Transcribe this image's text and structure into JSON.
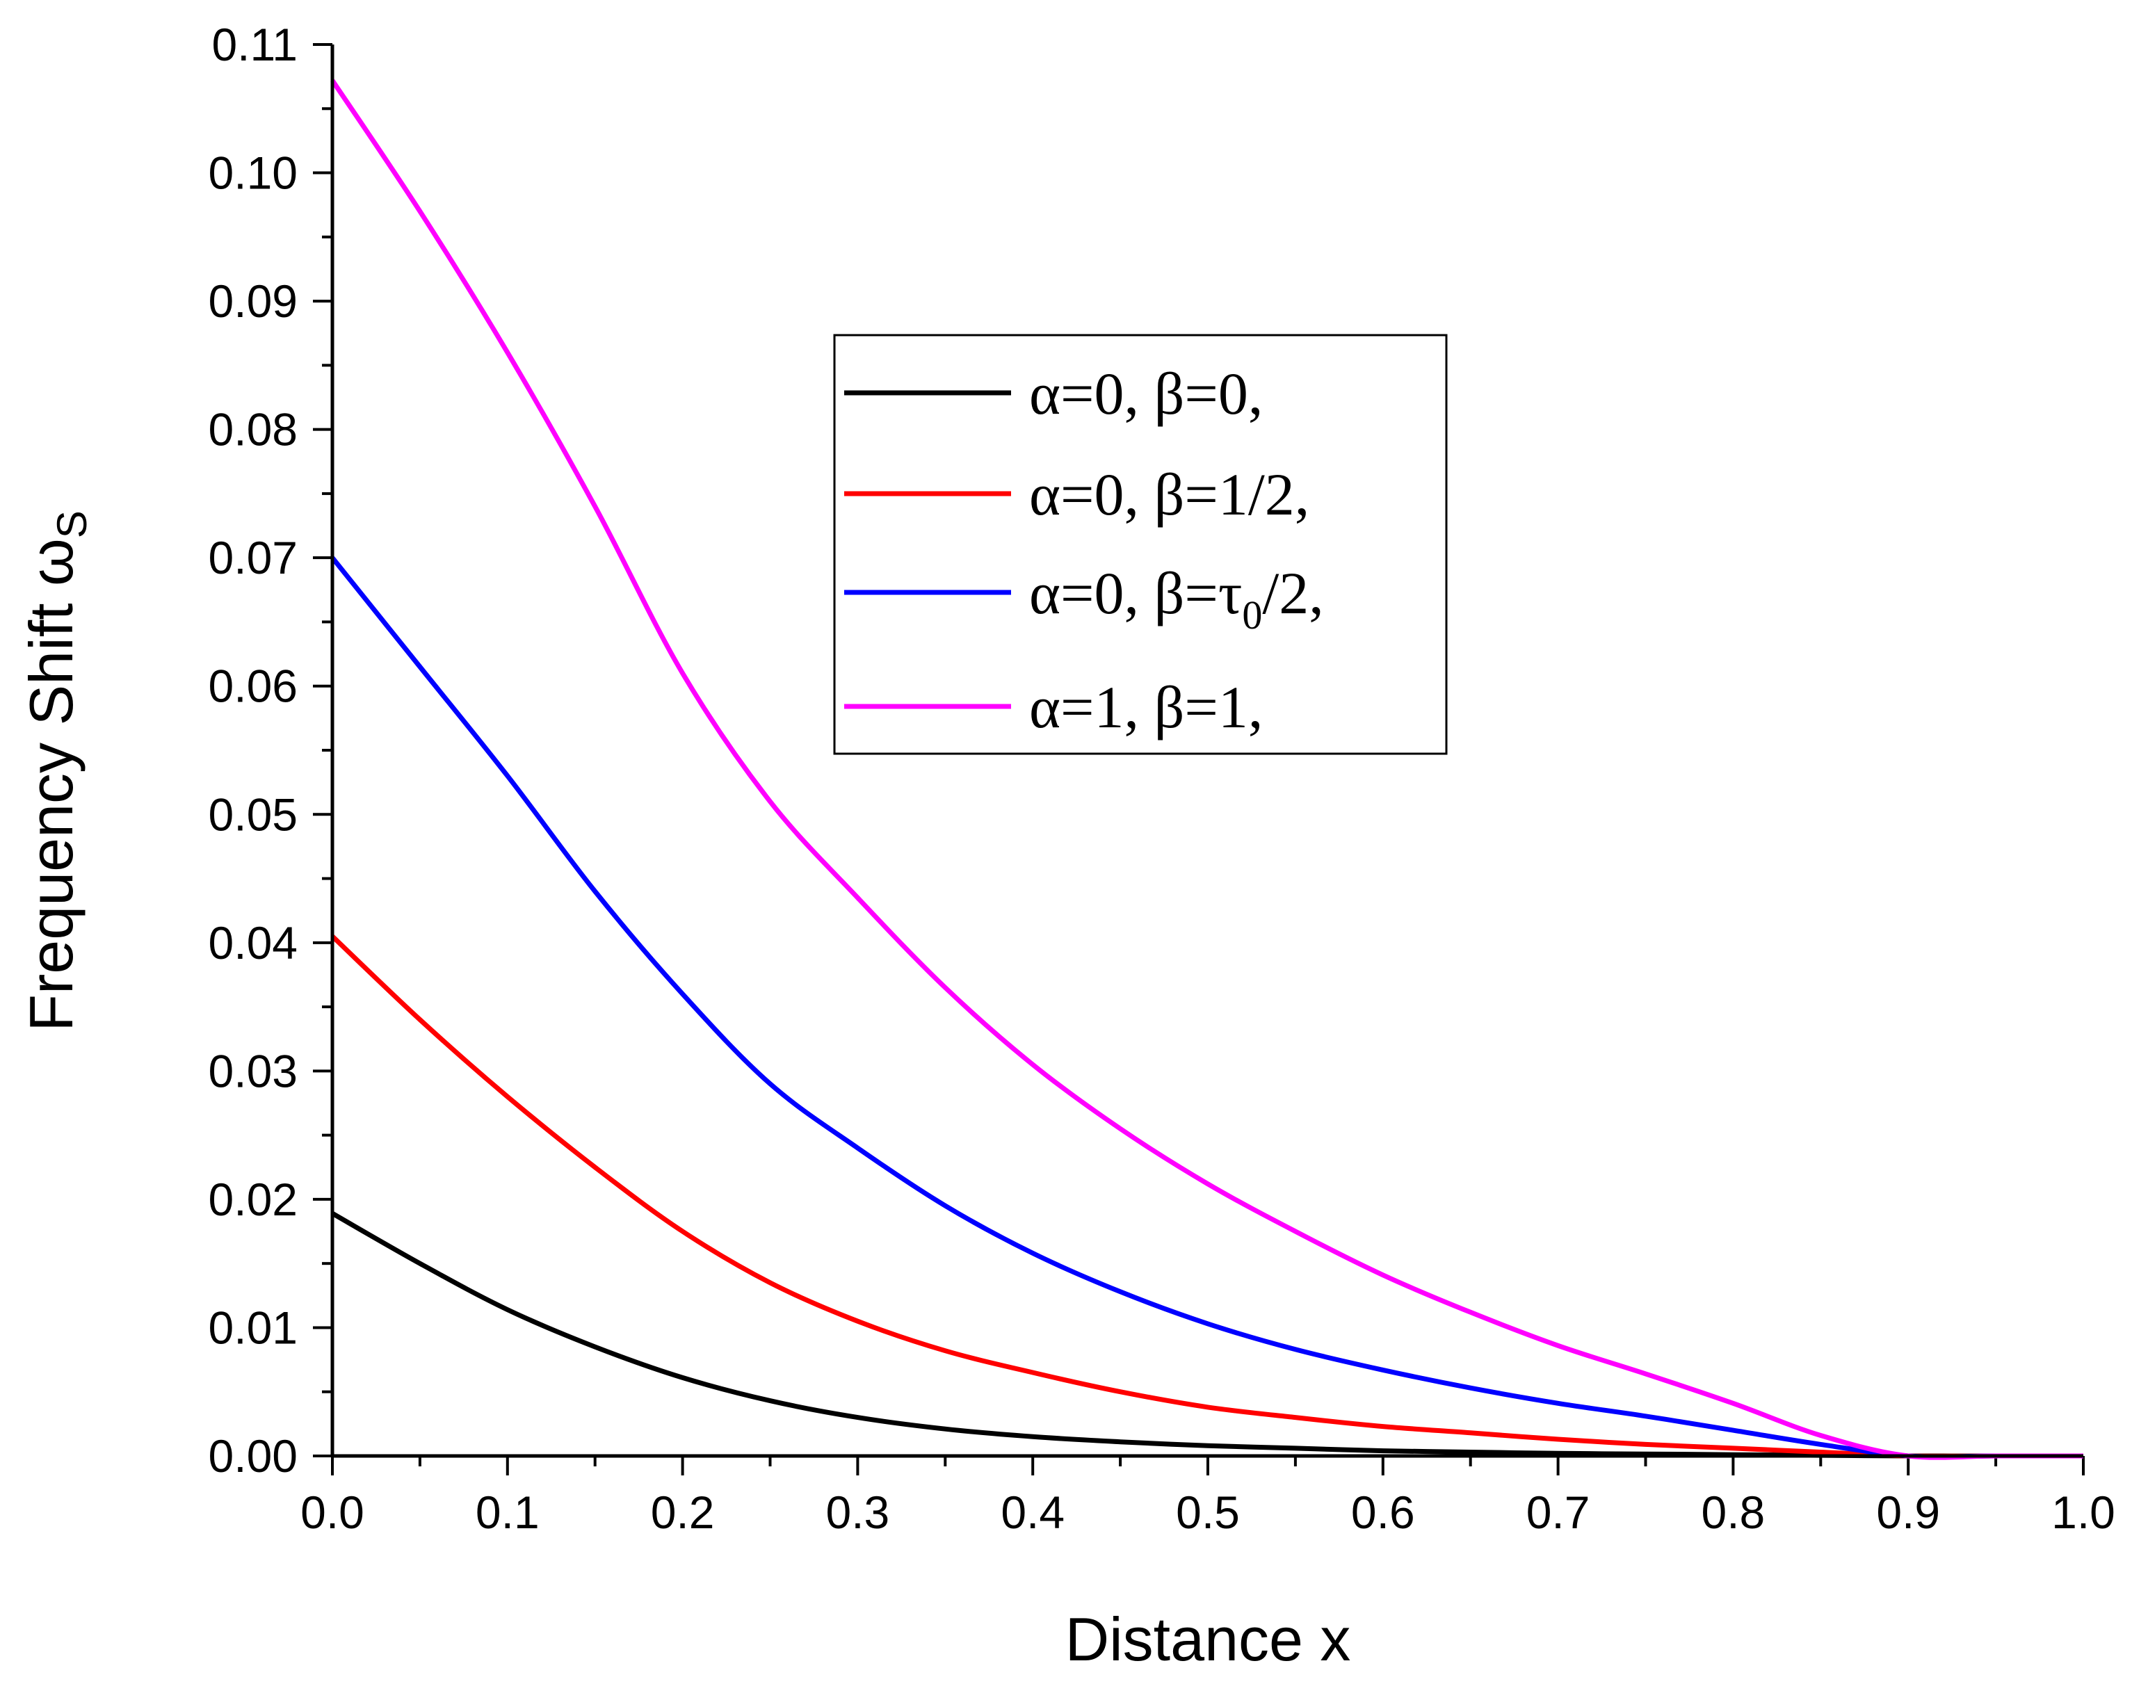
{
  "chart_data": {
    "type": "line",
    "title": "",
    "xlabel": "Distance x",
    "ylabel": "Frequency Shift ω",
    "ylabel_sub": "S",
    "xlim": [
      0.0,
      1.0
    ],
    "ylim": [
      0.0,
      0.11
    ],
    "xticks": [
      "0.0",
      "0.1",
      "0.2",
      "0.3",
      "0.4",
      "0.5",
      "0.6",
      "0.7",
      "0.8",
      "0.9",
      "1.0"
    ],
    "yticks": [
      "0.00",
      "0.01",
      "0.02",
      "0.03",
      "0.04",
      "0.05",
      "0.06",
      "0.07",
      "0.08",
      "0.09",
      "0.10",
      "0.11"
    ],
    "grid": false,
    "legend_position": "top-center-right",
    "x": [
      0.0,
      0.05,
      0.1,
      0.15,
      0.2,
      0.25,
      0.3,
      0.35,
      0.4,
      0.45,
      0.5,
      0.55,
      0.6,
      0.65,
      0.7,
      0.75,
      0.8,
      0.85,
      0.9,
      0.95,
      1.0
    ],
    "series": [
      {
        "name": "α=0, β=0,",
        "legend_parts": {
          "alpha": "α=0,",
          "beta_prefix": "β=0,",
          "beta_sub": "",
          "beta_suffix": ""
        },
        "color": "#000000",
        "values": [
          0.0189,
          0.015,
          0.0114,
          0.0085,
          0.0061,
          0.0043,
          0.003,
          0.0021,
          0.0015,
          0.0011,
          0.0008,
          0.0006,
          0.0004,
          0.0003,
          0.0002,
          0.00015,
          0.0001,
          5e-05,
          0.0,
          0.0,
          0.0
        ]
      },
      {
        "name": "α=0, β=1/2,",
        "legend_parts": {
          "alpha": "α=0,",
          "beta_prefix": "β=1/2,",
          "beta_sub": "",
          "beta_suffix": ""
        },
        "color": "#ff0000",
        "values": [
          0.0405,
          0.034,
          0.028,
          0.0225,
          0.0175,
          0.0135,
          0.0105,
          0.0082,
          0.0065,
          0.005,
          0.0038,
          0.003,
          0.0023,
          0.0018,
          0.0013,
          0.0009,
          0.0006,
          0.0003,
          0.0,
          0.0,
          0.0
        ]
      },
      {
        "name": "α=0, β=τ0/2,",
        "legend_parts": {
          "alpha": "α=0,",
          "beta_prefix": "β=τ",
          "beta_sub": "0",
          "beta_suffix": "/2,"
        },
        "color": "#0000ff",
        "values": [
          0.07,
          0.0615,
          0.053,
          0.044,
          0.036,
          0.029,
          0.024,
          0.0195,
          0.0158,
          0.0128,
          0.0103,
          0.0083,
          0.0067,
          0.0053,
          0.0041,
          0.0031,
          0.002,
          0.0009,
          0.0,
          0.0,
          0.0
        ]
      },
      {
        "name": "α=1, β=1,",
        "legend_parts": {
          "alpha": "α=1,",
          "beta_prefix": "β=1,",
          "beta_sub": "",
          "beta_suffix": ""
        },
        "color": "#ff00ff",
        "values": [
          0.1072,
          0.097,
          0.086,
          0.074,
          0.061,
          0.051,
          0.0435,
          0.0365,
          0.0305,
          0.0255,
          0.0212,
          0.0175,
          0.0141,
          0.0112,
          0.0086,
          0.0064,
          0.0041,
          0.0016,
          0.0,
          0.0,
          0.0
        ]
      }
    ]
  }
}
